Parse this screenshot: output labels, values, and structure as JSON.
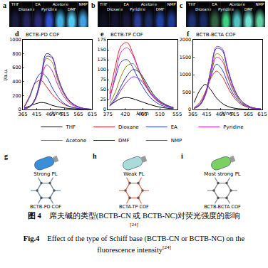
{
  "chart_data": [
    {
      "type": "line",
      "panel": "d",
      "title": "BCTB-PD COF",
      "x_label": "λ/nm",
      "y_label": "I/a.u.",
      "x": [
        370,
        390,
        410,
        430,
        450,
        470,
        490,
        510,
        530,
        550,
        570,
        590,
        610
      ],
      "xlim": [
        365,
        615
      ],
      "xticks": [
        365,
        415,
        465,
        515,
        565,
        615
      ],
      "ylim": [
        0,
        1000
      ],
      "yticks": [
        0,
        200,
        400,
        600,
        800,
        1000
      ],
      "grid": false,
      "legend": "bottom",
      "series": [
        {
          "name": "THF",
          "color": "#000000",
          "values": [
            20,
            50,
            80,
            100,
            90,
            60,
            40,
            25,
            15,
            10,
            5,
            3,
            2
          ]
        },
        {
          "name": "Dioxane",
          "color": "#e41a1c",
          "values": [
            40,
            200,
            380,
            420,
            330,
            220,
            140,
            80,
            45,
            25,
            12,
            6,
            3
          ]
        },
        {
          "name": "EA",
          "color": "#1f3fe0",
          "values": [
            30,
            180,
            400,
            520,
            470,
            320,
            190,
            100,
            50,
            25,
            12,
            6,
            3
          ]
        },
        {
          "name": "Pyridine",
          "color": "#e020c0",
          "values": [
            10,
            40,
            150,
            400,
            640,
            560,
            360,
            200,
            100,
            50,
            25,
            10,
            5
          ]
        },
        {
          "name": "Acetone",
          "color": "#8a8a00",
          "values": [
            10,
            40,
            160,
            450,
            730,
            680,
            430,
            240,
            120,
            60,
            30,
            12,
            5
          ]
        },
        {
          "name": "DMF",
          "color": "#1a2a8a",
          "values": [
            10,
            40,
            160,
            460,
            800,
            760,
            480,
            270,
            140,
            70,
            30,
            12,
            5
          ]
        },
        {
          "name": "NMP",
          "color": "#8a2be2",
          "values": [
            10,
            35,
            140,
            420,
            760,
            740,
            470,
            260,
            130,
            65,
            28,
            10,
            4
          ]
        }
      ]
    },
    {
      "type": "line",
      "panel": "e",
      "title": "BCTB-TP COF",
      "x_label": "λ/nm",
      "x": [
        380,
        395,
        410,
        425,
        440,
        455,
        470,
        485,
        500,
        515,
        530,
        545
      ],
      "xlim": [
        375,
        555
      ],
      "xticks": [
        375,
        420,
        465,
        510,
        555
      ],
      "ylim": [
        0,
        175
      ],
      "yticks": [
        0,
        25,
        50,
        75,
        100,
        125,
        150,
        175
      ],
      "grid": false,
      "legend": "bottom",
      "series": [
        {
          "name": "THF",
          "color": "#000000",
          "values": [
            10,
            20,
            28,
            30,
            27,
            22,
            17,
            12,
            8,
            5,
            3,
            2
          ]
        },
        {
          "name": "Dioxane",
          "color": "#e41a1c",
          "values": [
            40,
            110,
            160,
            168,
            140,
            100,
            65,
            40,
            24,
            14,
            8,
            4
          ]
        },
        {
          "name": "EA",
          "color": "#1f3fe0",
          "values": [
            30,
            80,
            120,
            125,
            105,
            75,
            50,
            30,
            18,
            10,
            6,
            3
          ]
        },
        {
          "name": "Pyridine",
          "color": "#e020c0",
          "values": [
            25,
            90,
            145,
            155,
            135,
            100,
            68,
            42,
            26,
            15,
            8,
            4
          ]
        },
        {
          "name": "Acetone",
          "color": "#8a8a00",
          "values": [
            15,
            45,
            85,
            110,
            115,
            95,
            70,
            45,
            28,
            16,
            9,
            5
          ]
        },
        {
          "name": "DMF",
          "color": "#1a2a8a",
          "values": [
            10,
            30,
            60,
            85,
            100,
            95,
            75,
            50,
            30,
            18,
            10,
            5
          ]
        },
        {
          "name": "NMP",
          "color": "#8a2be2",
          "values": [
            8,
            25,
            50,
            70,
            82,
            78,
            62,
            42,
            26,
            15,
            8,
            4
          ]
        }
      ]
    },
    {
      "type": "line",
      "panel": "f",
      "title": "BCTB-BCTA COF",
      "x_label": "λ/nm",
      "x": [
        370,
        390,
        410,
        430,
        450,
        470,
        490,
        510,
        530,
        550,
        570,
        590,
        610
      ],
      "xlim": [
        365,
        615
      ],
      "xticks": [
        365,
        415,
        465,
        515,
        565,
        615
      ],
      "ylim": [
        0,
        2000
      ],
      "yticks": [
        0,
        500,
        1000,
        1500,
        2000
      ],
      "grid": false,
      "legend": "bottom",
      "series": [
        {
          "name": "THF",
          "color": "#000000",
          "values": [
            200,
            550,
            720,
            560,
            330,
            180,
            90,
            45,
            22,
            10,
            5,
            2,
            1
          ]
        },
        {
          "name": "Dioxane",
          "color": "#e41a1c",
          "values": [
            50,
            200,
            500,
            900,
            1100,
            950,
            650,
            380,
            200,
            100,
            50,
            20,
            10
          ]
        },
        {
          "name": "EA",
          "color": "#1f3fe0",
          "values": [
            40,
            150,
            450,
            950,
            1300,
            1150,
            780,
            450,
            240,
            120,
            55,
            25,
            10
          ]
        },
        {
          "name": "Pyridine",
          "color": "#e020c0",
          "values": [
            30,
            120,
            400,
            1000,
            1500,
            1400,
            950,
            550,
            290,
            140,
            65,
            30,
            12
          ]
        },
        {
          "name": "Acetone",
          "color": "#8a8a00",
          "values": [
            30,
            120,
            420,
            1050,
            1600,
            1500,
            1000,
            580,
            300,
            150,
            70,
            30,
            12
          ]
        },
        {
          "name": "DMF",
          "color": "#1a2a8a",
          "values": [
            30,
            130,
            450,
            1150,
            1750,
            1700,
            1150,
            650,
            340,
            170,
            80,
            35,
            15
          ]
        },
        {
          "name": "NMP",
          "color": "#8a2be2",
          "values": [
            30,
            130,
            440,
            1150,
            1800,
            1750,
            1200,
            680,
            350,
            175,
            80,
            35,
            15
          ]
        }
      ]
    }
  ],
  "photos": [
    {
      "panel": "a",
      "solvents": [
        "THF",
        "Dioxane",
        "EA",
        "Pyridine",
        "Acetone",
        "DMF",
        "NMP"
      ],
      "colors": [
        "#1a1a40",
        "#24245a",
        "#2a2a70",
        "#3050d0",
        "#40b0e0",
        "#50c8f0",
        "#40a0e0"
      ]
    },
    {
      "panel": "b",
      "solvents": [
        "THF",
        "Dioxane",
        "EA",
        "Pyridine",
        "Acetone",
        "DMF",
        "NMP"
      ],
      "colors": [
        "#101020",
        "#141430",
        "#181838",
        "#2a3a90",
        "#1a2a60",
        "#2040a0",
        "#203a90"
      ]
    },
    {
      "panel": "c",
      "solvents": [
        "THF",
        "Dioxane",
        "EA",
        "Pyridine",
        "Acetone",
        "DMF",
        "NMP"
      ],
      "colors": [
        "#203070",
        "#1a2a60",
        "#306040",
        "#40d080",
        "#50c0c0",
        "#70e0d0",
        "#60d0a0"
      ]
    }
  ],
  "diagrams": [
    {
      "panel": "g",
      "label": "Strong PL",
      "name": "BCTB-PD COF"
    },
    {
      "panel": "h",
      "label": "Weak PL",
      "name": "BCTA-TP COF"
    },
    {
      "panel": "i",
      "label": "Most strong PL",
      "name": "BCTB-BCTA COF"
    }
  ],
  "caption": {
    "zh_label": "图 4",
    "zh_text": "席夫碱的类型(BCTB-CN 或 BCTB-NC)对荧光强度的影响",
    "en_label": "Fig.4",
    "en_text": "Effect of the type of Schiff base (BCTB-CN or BCTB-NC) on the fluorescence intensity",
    "ref": "[24]"
  }
}
